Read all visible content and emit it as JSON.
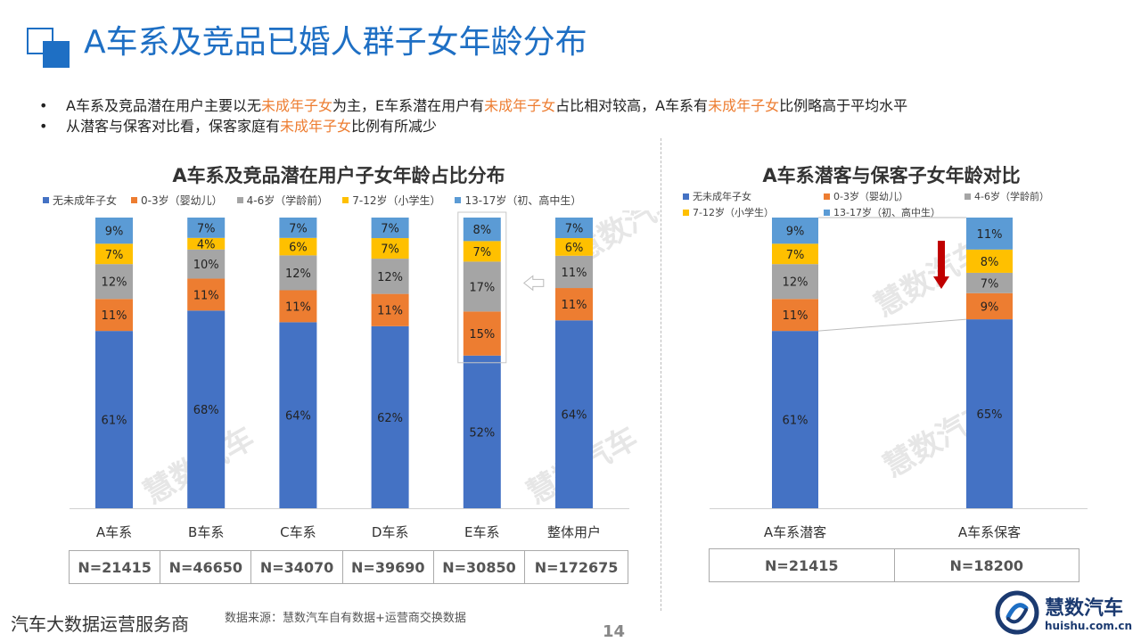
{
  "page": {
    "title": "A车系及竞品已婚人群子女年龄分布",
    "bullets": [
      [
        {
          "text": "A车系及竞品潜在用户主要以无",
          "hl": false
        },
        {
          "text": "未成年子女",
          "hl": true
        },
        {
          "text": "为主，E车系潜在用户有",
          "hl": false
        },
        {
          "text": "未成年子女",
          "hl": true
        },
        {
          "text": "占比相对较高，A车系有",
          "hl": false
        },
        {
          "text": "未成年子女",
          "hl": true
        },
        {
          "text": "比例略高于平均水平",
          "hl": false
        }
      ],
      [
        {
          "text": "从潜客与保客对比看，保客家庭有",
          "hl": false
        },
        {
          "text": "未成年子女",
          "hl": true
        },
        {
          "text": "比例有所减少",
          "hl": false
        }
      ]
    ],
    "watermark": "慧数汽车",
    "footer_left": "汽车大数据运营服务商",
    "footer_source": "数据来源：慧数汽车自有数据+运营商交换数据",
    "page_number": "14",
    "logo_name": "慧数汽车",
    "logo_url": "huishu.com.cn",
    "colors": {
      "title_blue": "#1e6fc4",
      "highlight": "#ed7d31",
      "s0": "#4472c4",
      "s1": "#ed7d31",
      "s2": "#a5a5a5",
      "s3": "#ffc000",
      "s4": "#5b9bd5",
      "arrow": "#c00000"
    }
  },
  "chart_data": [
    {
      "type": "bar",
      "stacked": true,
      "title": "A车系及竞品潜在用户子女年龄占比分布",
      "legend_position": "top",
      "categories": [
        "A车系",
        "B车系",
        "C车系",
        "D车系",
        "E车系",
        "整体用户"
      ],
      "series": [
        {
          "name": "无未成年子女",
          "values": [
            61,
            68,
            64,
            62,
            52,
            64
          ]
        },
        {
          "name": "0-3岁（婴幼儿）",
          "values": [
            11,
            11,
            11,
            11,
            15,
            11
          ]
        },
        {
          "name": "4-6岁（学龄前）",
          "values": [
            12,
            10,
            12,
            12,
            17,
            11
          ]
        },
        {
          "name": "7-12岁（小学生）",
          "values": [
            7,
            4,
            6,
            7,
            7,
            6
          ]
        },
        {
          "name": "13-17岁（初、高中生）",
          "values": [
            9,
            7,
            7,
            7,
            8,
            7
          ]
        }
      ],
      "value_suffix": "%",
      "n_row": [
        "N=21415",
        "N=46650",
        "N=34070",
        "N=39690",
        "N=30850",
        "N=172675"
      ],
      "highlighted_category": "E车系",
      "grid": false
    },
    {
      "type": "bar",
      "stacked": true,
      "title": "A车系潜客与保客子女年龄对比",
      "legend_position": "top",
      "categories": [
        "A车系潜客",
        "A车系保客"
      ],
      "series": [
        {
          "name": "无未成年子女",
          "values": [
            61,
            65
          ]
        },
        {
          "name": "0-3岁（婴幼儿）",
          "values": [
            11,
            9
          ]
        },
        {
          "name": "4-6岁（学龄前）",
          "values": [
            12,
            7
          ]
        },
        {
          "name": "7-12岁（小学生）",
          "values": [
            7,
            8
          ]
        },
        {
          "name": "13-17岁（初、高中生）",
          "values": [
            9,
            11
          ]
        }
      ],
      "value_suffix": "%",
      "n_row": [
        "N=21415",
        "N=18200"
      ],
      "grid": false
    }
  ]
}
